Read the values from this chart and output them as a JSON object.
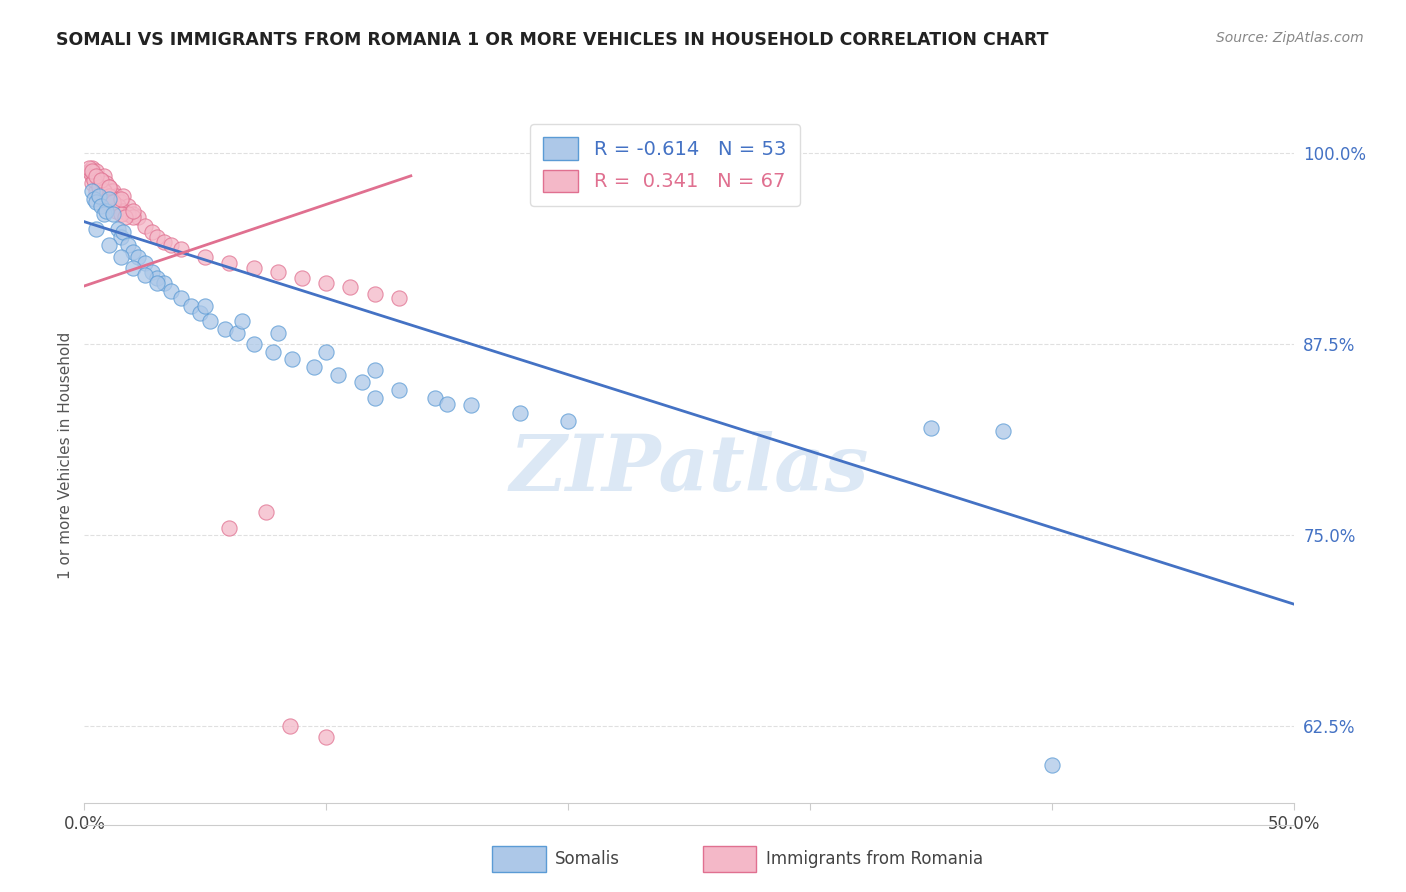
{
  "title": "SOMALI VS IMMIGRANTS FROM ROMANIA 1 OR MORE VEHICLES IN HOUSEHOLD CORRELATION CHART",
  "source": "Source: ZipAtlas.com",
  "ylabel": "1 or more Vehicles in Household",
  "xlim": [
    0.0,
    0.5
  ],
  "ylim": [
    0.575,
    1.03
  ],
  "yticks": [
    0.625,
    0.75,
    0.875,
    1.0
  ],
  "yticklabels": [
    "62.5%",
    "75.0%",
    "87.5%",
    "100.0%"
  ],
  "xtick_positions": [
    0.0,
    0.1,
    0.2,
    0.3,
    0.4,
    0.5
  ],
  "xticklabels": [
    "0.0%",
    "",
    "",
    "",
    "",
    "50.0%"
  ],
  "somali_R": -0.614,
  "somali_N": 53,
  "romania_R": 0.341,
  "romania_N": 67,
  "somali_color": "#adc8e8",
  "somali_edge_color": "#5b9bd5",
  "somali_line_color": "#4472c4",
  "romania_color": "#f4b8c8",
  "romania_edge_color": "#e07090",
  "romania_line_color": "#e07090",
  "watermark_text": "ZIPatlas",
  "watermark_color": "#dce8f5",
  "background_color": "#ffffff",
  "grid_color": "#e0e0e0",
  "tick_color": "#4472c4",
  "legend_label_1": "R = -0.614   N = 53",
  "legend_label_2": "R =  0.341   N = 67",
  "bottom_label_1": "Somalis",
  "bottom_label_2": "Immigrants from Romania",
  "somali_trend_x": [
    0.0,
    0.5
  ],
  "somali_trend_y": [
    0.955,
    0.705
  ],
  "romania_trend_x": [
    0.0,
    0.135
  ],
  "romania_trend_y": [
    0.913,
    0.985
  ],
  "somali_x": [
    0.003,
    0.004,
    0.005,
    0.006,
    0.007,
    0.008,
    0.009,
    0.01,
    0.012,
    0.014,
    0.015,
    0.016,
    0.018,
    0.02,
    0.022,
    0.025,
    0.028,
    0.03,
    0.033,
    0.036,
    0.04,
    0.044,
    0.048,
    0.052,
    0.058,
    0.063,
    0.07,
    0.078,
    0.086,
    0.095,
    0.105,
    0.115,
    0.13,
    0.145,
    0.16,
    0.18,
    0.2,
    0.005,
    0.01,
    0.015,
    0.02,
    0.025,
    0.03,
    0.05,
    0.065,
    0.08,
    0.1,
    0.12,
    0.35,
    0.38,
    0.12,
    0.15,
    0.4
  ],
  "somali_y": [
    0.975,
    0.97,
    0.968,
    0.972,
    0.965,
    0.96,
    0.962,
    0.97,
    0.96,
    0.95,
    0.945,
    0.948,
    0.94,
    0.935,
    0.932,
    0.928,
    0.922,
    0.918,
    0.915,
    0.91,
    0.905,
    0.9,
    0.895,
    0.89,
    0.885,
    0.882,
    0.875,
    0.87,
    0.865,
    0.86,
    0.855,
    0.85,
    0.845,
    0.84,
    0.835,
    0.83,
    0.825,
    0.95,
    0.94,
    0.932,
    0.925,
    0.92,
    0.915,
    0.9,
    0.89,
    0.882,
    0.87,
    0.858,
    0.82,
    0.818,
    0.84,
    0.836,
    0.6
  ],
  "romania_x": [
    0.002,
    0.003,
    0.004,
    0.005,
    0.006,
    0.007,
    0.008,
    0.009,
    0.01,
    0.011,
    0.012,
    0.013,
    0.014,
    0.015,
    0.016,
    0.018,
    0.02,
    0.022,
    0.025,
    0.028,
    0.03,
    0.033,
    0.036,
    0.04,
    0.003,
    0.004,
    0.006,
    0.008,
    0.01,
    0.012,
    0.014,
    0.016,
    0.018,
    0.02,
    0.003,
    0.005,
    0.007,
    0.009,
    0.011,
    0.013,
    0.015,
    0.017,
    0.004,
    0.006,
    0.008,
    0.01,
    0.012,
    0.05,
    0.06,
    0.07,
    0.08,
    0.09,
    0.1,
    0.11,
    0.12,
    0.13,
    0.002,
    0.003,
    0.005,
    0.007,
    0.01,
    0.015,
    0.02,
    0.085,
    0.1,
    0.06,
    0.075
  ],
  "romania_y": [
    0.988,
    0.99,
    0.985,
    0.988,
    0.983,
    0.982,
    0.985,
    0.98,
    0.978,
    0.975,
    0.975,
    0.972,
    0.97,
    0.968,
    0.972,
    0.965,
    0.96,
    0.958,
    0.952,
    0.948,
    0.945,
    0.942,
    0.94,
    0.937,
    0.985,
    0.982,
    0.978,
    0.975,
    0.972,
    0.968,
    0.965,
    0.962,
    0.96,
    0.958,
    0.98,
    0.975,
    0.972,
    0.968,
    0.965,
    0.962,
    0.96,
    0.958,
    0.982,
    0.978,
    0.975,
    0.972,
    0.968,
    0.932,
    0.928,
    0.925,
    0.922,
    0.918,
    0.915,
    0.912,
    0.908,
    0.905,
    0.99,
    0.988,
    0.985,
    0.982,
    0.978,
    0.97,
    0.962,
    0.625,
    0.618,
    0.755,
    0.765
  ]
}
